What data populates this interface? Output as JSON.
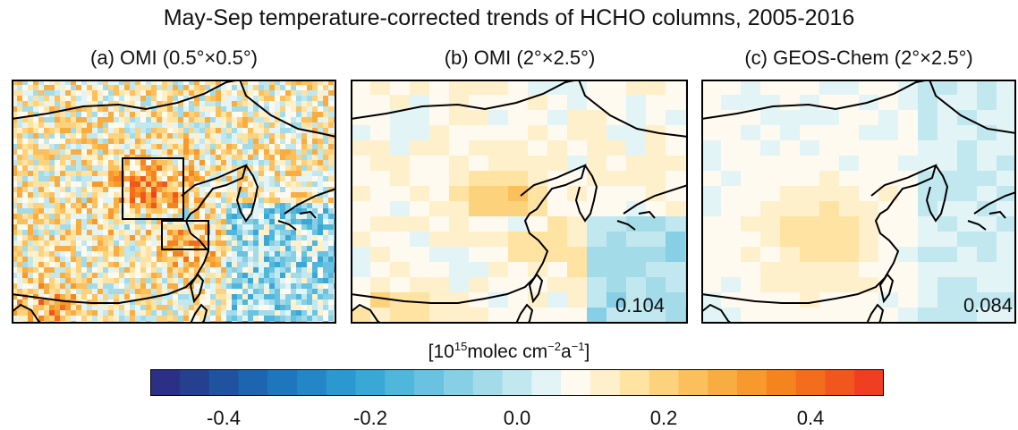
{
  "figure": {
    "title": "May-Sep temperature-corrected trends of HCHO columns, 2005-2016",
    "panels": [
      {
        "id": "a",
        "title": "(a) OMI (0.5°×0.5°)",
        "value": ""
      },
      {
        "id": "b",
        "title": "(b) OMI (2°×2.5°)",
        "value": "0.104"
      },
      {
        "id": "c",
        "title": "(c) GEOS-Chem (2°×2.5°)",
        "value": "0.084"
      }
    ],
    "units": {
      "base": "10",
      "exp1": "15",
      "mid": "molec cm",
      "exp2": "−2",
      "a": "a",
      "exp3": "−1"
    }
  },
  "colorbar": {
    "range": [
      -0.5,
      0.5
    ],
    "ticks": [
      {
        "value": -0.4,
        "label": "-0.4"
      },
      {
        "value": -0.2,
        "label": "-0.2"
      },
      {
        "value": 0.0,
        "label": "0.0"
      },
      {
        "value": 0.2,
        "label": "0.2"
      },
      {
        "value": 0.4,
        "label": "0.4"
      }
    ],
    "colors": [
      "#2b2f86",
      "#25408f",
      "#1f53a0",
      "#1d65b0",
      "#1e76bd",
      "#2387c7",
      "#2c98d0",
      "#3aa8d7",
      "#4fb7dc",
      "#69c3e0",
      "#86cfe4",
      "#a3dbe8",
      "#c2e8ef",
      "#e2f4f6",
      "#fffaf0",
      "#fff0cc",
      "#ffe3a3",
      "#fdd27d",
      "#fbc05c",
      "#f9ad40",
      "#f7992c",
      "#f5841f",
      "#f36e1c",
      "#f1571d",
      "#ef3e22"
    ]
  }
}
